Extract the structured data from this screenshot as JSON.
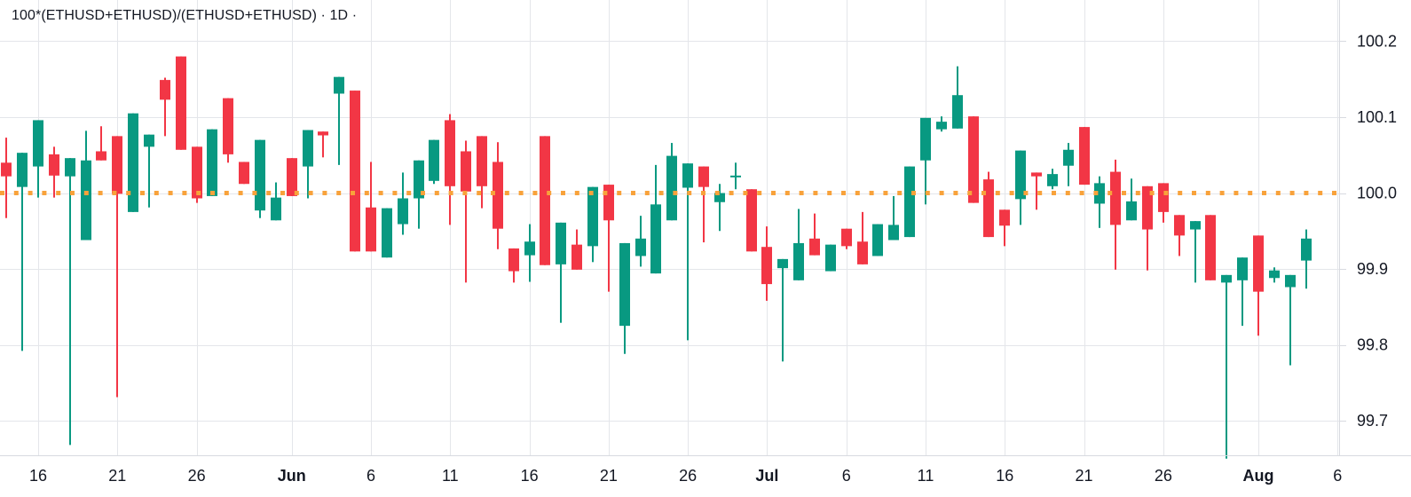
{
  "header": {
    "title": "100*(ETHUSD+ETHUSD)/(ETHUSD+ETHUSD) · 1D ·"
  },
  "colors": {
    "up": "#089981",
    "down": "#F23645",
    "grid": "#E4E6EA",
    "border": "#D8DAE0",
    "text": "#131722",
    "price_line": "#F8A23B",
    "background": "#FFFFFF"
  },
  "price_axis": {
    "labels": [
      "100.2",
      "100.1",
      "100.0",
      "99.9",
      "99.8",
      "99.7"
    ],
    "values": [
      100.2,
      100.1,
      100.0,
      99.9,
      99.8,
      99.7
    ]
  },
  "time_axis": {
    "ticks": [
      {
        "label": "16",
        "index": 2,
        "month": false
      },
      {
        "label": "21",
        "index": 7,
        "month": false
      },
      {
        "label": "26",
        "index": 12,
        "month": false
      },
      {
        "label": "Jun",
        "index": 18,
        "month": true
      },
      {
        "label": "6",
        "index": 23,
        "month": false
      },
      {
        "label": "11",
        "index": 28,
        "month": false
      },
      {
        "label": "16",
        "index": 33,
        "month": false
      },
      {
        "label": "21",
        "index": 38,
        "month": false
      },
      {
        "label": "26",
        "index": 43,
        "month": false
      },
      {
        "label": "Jul",
        "index": 48,
        "month": true
      },
      {
        "label": "6",
        "index": 53,
        "month": false
      },
      {
        "label": "11",
        "index": 58,
        "month": false
      },
      {
        "label": "16",
        "index": 63,
        "month": false
      },
      {
        "label": "21",
        "index": 68,
        "month": false
      },
      {
        "label": "26",
        "index": 73,
        "month": false
      },
      {
        "label": "Aug",
        "index": 79,
        "month": true
      },
      {
        "label": "6",
        "index": 84,
        "month": false
      }
    ]
  },
  "chart_data": {
    "type": "candlestick",
    "title": "100*(ETHUSD+ETHUSD)/(ETHUSD+ETHUSD)",
    "interval": "1D",
    "ylim": [
      99.65,
      100.25
    ],
    "grid": true,
    "price_line": {
      "value": 100.0,
      "style": "dotted"
    },
    "columns": [
      "date",
      "open",
      "high",
      "low",
      "close"
    ],
    "candles": [
      [
        "May 14",
        100.04,
        100.073,
        99.967,
        100.022
      ],
      [
        "May 15",
        100.008,
        100.053,
        99.792,
        100.053
      ],
      [
        "May 16",
        100.035,
        100.096,
        99.994,
        100.096
      ],
      [
        "May 17",
        100.051,
        100.061,
        99.994,
        100.023
      ],
      [
        "May 18",
        100.022,
        100.046,
        99.668,
        100.046
      ],
      [
        "May 19",
        99.938,
        100.082,
        99.938,
        100.043
      ],
      [
        "May 20",
        100.055,
        100.088,
        100.043,
        100.043
      ],
      [
        "May 21",
        100.075,
        100.075,
        99.731,
        99.999
      ],
      [
        "May 22",
        99.975,
        100.105,
        99.975,
        100.105
      ],
      [
        "May 23",
        100.061,
        100.077,
        99.981,
        100.077
      ],
      [
        "May 24",
        100.149,
        100.152,
        100.075,
        100.123
      ],
      [
        "May 25",
        100.18,
        100.18,
        100.057,
        100.057
      ],
      [
        "May 26",
        100.061,
        100.061,
        99.987,
        99.993
      ],
      [
        "May 27",
        99.996,
        100.084,
        99.996,
        100.084
      ],
      [
        "May 28",
        100.125,
        100.125,
        100.04,
        100.051
      ],
      [
        "May 29",
        100.041,
        100.041,
        100.012,
        100.012
      ],
      [
        "May 30",
        99.977,
        100.07,
        99.967,
        100.07
      ],
      [
        "May 31",
        99.964,
        100.014,
        99.964,
        99.994
      ],
      [
        "Jun 1",
        100.046,
        100.046,
        99.996,
        99.996
      ],
      [
        "Jun 2",
        100.035,
        100.083,
        99.993,
        100.083
      ],
      [
        "Jun 3",
        100.081,
        100.081,
        100.047,
        100.076
      ],
      [
        "Jun 4",
        100.131,
        100.153,
        100.037,
        100.153
      ],
      [
        "Jun 5",
        100.135,
        100.135,
        99.923,
        99.923
      ],
      [
        "Jun 6",
        99.981,
        100.041,
        99.923,
        99.923
      ],
      [
        "Jun 7",
        99.915,
        99.98,
        99.915,
        99.98
      ],
      [
        "Jun 8",
        99.959,
        100.027,
        99.945,
        99.993
      ],
      [
        "Jun 9",
        99.993,
        100.043,
        99.953,
        100.043
      ],
      [
        "Jun 10",
        100.016,
        100.07,
        100.012,
        100.07
      ],
      [
        "Jun 11",
        100.096,
        100.104,
        99.958,
        100.009
      ],
      [
        "Jun 12",
        100.055,
        100.069,
        99.882,
        100.002
      ],
      [
        "Jun 13",
        100.075,
        100.075,
        99.98,
        100.009
      ],
      [
        "Jun 14",
        100.041,
        100.067,
        99.926,
        99.953
      ],
      [
        "Jun 15",
        99.927,
        99.927,
        99.882,
        99.897
      ],
      [
        "Jun 16",
        99.918,
        99.959,
        99.883,
        99.936
      ],
      [
        "Jun 17",
        100.075,
        100.075,
        99.905,
        99.905
      ],
      [
        "Jun 18",
        99.906,
        99.961,
        99.829,
        99.961
      ],
      [
        "Jun 19",
        99.932,
        99.952,
        99.899,
        99.899
      ],
      [
        "Jun 20",
        99.93,
        100.008,
        99.909,
        100.008
      ],
      [
        "Jun 21",
        100.011,
        100.011,
        99.87,
        99.964
      ],
      [
        "Jun 22",
        99.825,
        99.934,
        99.788,
        99.934
      ],
      [
        "Jun 23",
        99.917,
        99.97,
        99.903,
        99.94
      ],
      [
        "Jun 24",
        99.894,
        100.037,
        99.894,
        99.985
      ],
      [
        "Jun 25",
        99.964,
        100.066,
        99.964,
        100.049
      ],
      [
        "Jun 26",
        100.007,
        100.039,
        99.806,
        100.039
      ],
      [
        "Jun 27",
        100.035,
        100.035,
        99.935,
        100.008
      ],
      [
        "Jun 28",
        99.988,
        100.012,
        99.95,
        100.0
      ],
      [
        "Jun 29",
        100.021,
        100.04,
        100.005,
        100.023
      ],
      [
        "Jun 30",
        100.005,
        100.005,
        99.923,
        99.923
      ],
      [
        "Jul 1",
        99.929,
        99.956,
        99.858,
        99.88
      ],
      [
        "Jul 2",
        99.901,
        99.913,
        99.778,
        99.913
      ],
      [
        "Jul 3",
        99.885,
        99.979,
        99.885,
        99.934
      ],
      [
        "Jul 4",
        99.94,
        99.973,
        99.918,
        99.918
      ],
      [
        "Jul 5",
        99.897,
        99.932,
        99.897,
        99.932
      ],
      [
        "Jul 6",
        99.953,
        99.953,
        99.926,
        99.93
      ],
      [
        "Jul 7",
        99.936,
        99.975,
        99.906,
        99.906
      ],
      [
        "Jul 8",
        99.917,
        99.959,
        99.917,
        99.959
      ],
      [
        "Jul 9",
        99.938,
        99.996,
        99.938,
        99.958
      ],
      [
        "Jul 10",
        99.942,
        100.035,
        99.942,
        100.035
      ],
      [
        "Jul 11",
        100.043,
        100.099,
        99.985,
        100.099
      ],
      [
        "Jul 12",
        100.084,
        100.101,
        100.081,
        100.094
      ],
      [
        "Jul 13",
        100.085,
        100.167,
        100.085,
        100.129
      ],
      [
        "Jul 14",
        100.101,
        100.101,
        99.987,
        99.987
      ],
      [
        "Jul 15",
        100.018,
        100.028,
        99.942,
        99.942
      ],
      [
        "Jul 16",
        99.978,
        99.978,
        99.93,
        99.957
      ],
      [
        "Jul 17",
        99.992,
        100.056,
        99.958,
        100.056
      ],
      [
        "Jul 18",
        100.027,
        100.027,
        99.978,
        100.022
      ],
      [
        "Jul 19",
        100.009,
        100.032,
        100.005,
        100.025
      ],
      [
        "Jul 20",
        100.036,
        100.066,
        100.009,
        100.057
      ],
      [
        "Jul 21",
        100.087,
        100.087,
        100.011,
        100.011
      ],
      [
        "Jul 22",
        99.986,
        100.022,
        99.954,
        100.013
      ],
      [
        "Jul 23",
        100.028,
        100.044,
        99.899,
        99.958
      ],
      [
        "Jul 24",
        99.964,
        100.019,
        99.964,
        99.989
      ],
      [
        "Jul 25",
        100.009,
        100.009,
        99.898,
        99.952
      ],
      [
        "Jul 26",
        100.013,
        100.013,
        99.961,
        99.975
      ],
      [
        "Jul 27",
        99.971,
        99.971,
        99.917,
        99.944
      ],
      [
        "Jul 28",
        99.952,
        99.963,
        99.882,
        99.963
      ],
      [
        "Jul 29",
        99.971,
        99.971,
        99.885,
        99.885
      ],
      [
        "Jul 30",
        99.882,
        99.892,
        99.65,
        99.892
      ],
      [
        "Jul 31",
        99.885,
        99.915,
        99.825,
        99.915
      ],
      [
        "Aug 1",
        99.944,
        99.944,
        99.812,
        99.87
      ],
      [
        "Aug 2",
        99.888,
        99.902,
        99.882,
        99.898
      ],
      [
        "Aug 3",
        99.876,
        99.892,
        99.773,
        99.892
      ],
      [
        "Aug 4",
        99.911,
        99.952,
        99.874,
        99.94
      ]
    ]
  }
}
